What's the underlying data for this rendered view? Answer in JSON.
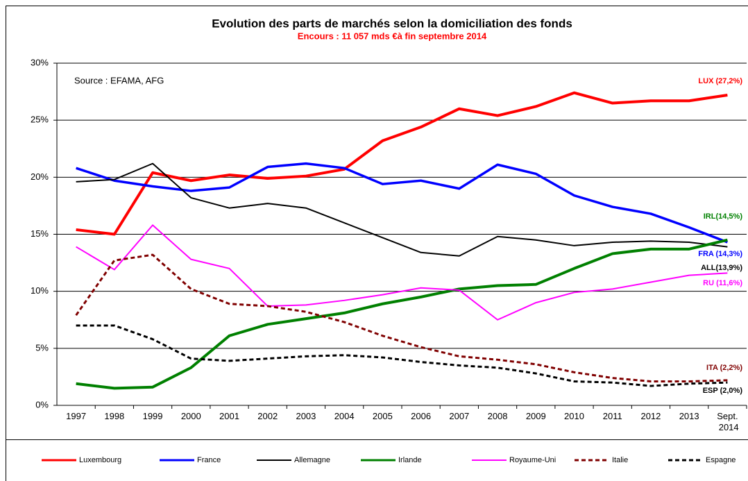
{
  "chart_data": {
    "type": "line",
    "title": "Evolution des parts de marchés selon la domiciliation des fonds",
    "subtitle": "Encours : 11 057 mds €à fin septembre 2014",
    "source": "Source : EFAMA, AFG",
    "categories": [
      "1997",
      "1998",
      "1999",
      "2000",
      "2001",
      "2002",
      "2003",
      "2004",
      "2005",
      "2006",
      "2007",
      "2008",
      "2009",
      "2010",
      "2011",
      "2012",
      "2013",
      "Sept. 2014"
    ],
    "ylim": [
      0,
      30
    ],
    "yticks": [
      {
        "value": 0,
        "label": "0%"
      },
      {
        "value": 5,
        "label": "5%"
      },
      {
        "value": 10,
        "label": "10%"
      },
      {
        "value": 15,
        "label": "15%"
      },
      {
        "value": 20,
        "label": "20%"
      },
      {
        "value": 25,
        "label": "25%"
      },
      {
        "value": 30,
        "label": "30%"
      }
    ],
    "grid": true,
    "series": [
      {
        "name": "Luxembourg",
        "color": "#ff0000",
        "line_width": 4,
        "dashed": false,
        "values": [
          15.4,
          15.0,
          20.4,
          19.7,
          20.2,
          19.9,
          20.1,
          20.7,
          23.2,
          24.4,
          26.0,
          25.4,
          26.2,
          27.4,
          26.5,
          26.7,
          26.7,
          27.2
        ]
      },
      {
        "name": "France",
        "color": "#0000ff",
        "line_width": 3.5,
        "dashed": false,
        "values": [
          20.8,
          19.7,
          19.2,
          18.8,
          19.1,
          20.9,
          21.2,
          20.8,
          19.4,
          19.7,
          19.0,
          21.1,
          20.3,
          18.4,
          17.4,
          16.8,
          15.6,
          14.3
        ]
      },
      {
        "name": "Allemagne",
        "color": "#000000",
        "line_width": 2,
        "dashed": false,
        "values": [
          19.6,
          19.8,
          21.2,
          18.2,
          17.3,
          17.7,
          17.3,
          16.0,
          14.7,
          13.4,
          13.1,
          14.8,
          14.5,
          14.0,
          14.3,
          14.4,
          14.3,
          13.9
        ]
      },
      {
        "name": "Irlande",
        "color": "#008000",
        "line_width": 4,
        "dashed": false,
        "values": [
          1.9,
          1.5,
          1.6,
          3.3,
          6.1,
          7.1,
          7.6,
          8.1,
          8.9,
          9.5,
          10.2,
          10.5,
          10.6,
          12.0,
          13.3,
          13.7,
          13.7,
          14.5
        ]
      },
      {
        "name": "Royaume-Uni",
        "color": "#ff00ff",
        "line_width": 2,
        "dashed": false,
        "values": [
          13.9,
          11.9,
          15.8,
          12.8,
          12.0,
          8.7,
          8.8,
          9.2,
          9.7,
          10.3,
          10.1,
          7.5,
          9.0,
          9.9,
          10.2,
          10.8,
          11.4,
          11.6
        ]
      },
      {
        "name": "Italie",
        "color": "#800000",
        "line_width": 3,
        "dashed": true,
        "values": [
          7.9,
          12.7,
          13.2,
          10.2,
          8.9,
          8.7,
          8.2,
          7.3,
          6.1,
          5.1,
          4.3,
          4.0,
          3.6,
          2.9,
          2.4,
          2.1,
          2.1,
          2.2
        ]
      },
      {
        "name": "Espagne",
        "color": "#000000",
        "line_width": 3,
        "dashed": true,
        "values": [
          7.0,
          7.0,
          5.8,
          4.1,
          3.9,
          4.1,
          4.3,
          4.4,
          4.2,
          3.8,
          3.5,
          3.3,
          2.8,
          2.1,
          2.0,
          1.7,
          1.9,
          2.0
        ]
      }
    ],
    "annotations": [
      {
        "text": "LUX (27,2%)",
        "color": "#ff0000"
      },
      {
        "text": "IRL(14,5%)",
        "color": "#008000"
      },
      {
        "text": "FRA (14,3%)",
        "color": "#0000ff"
      },
      {
        "text": "ALL(13,9%)",
        "color": "#000000"
      },
      {
        "text": "RU (11,6%)",
        "color": "#ff00ff"
      },
      {
        "text": "ITA (2,2%)",
        "color": "#800000"
      },
      {
        "text": "ESP (2,0%)",
        "color": "#000000"
      }
    ]
  }
}
